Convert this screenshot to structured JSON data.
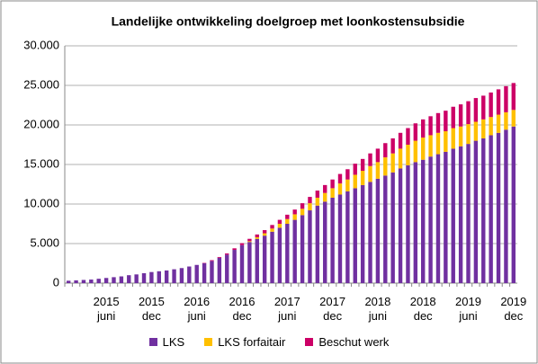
{
  "chart_data": {
    "type": "stacked_bar",
    "title": "Landelijke ontwikkeling doelgroep met loonkostensubsidie",
    "categories": [
      null,
      null,
      null,
      null,
      null,
      "2015 juni",
      null,
      null,
      null,
      null,
      null,
      "2015 dec",
      null,
      null,
      null,
      null,
      null,
      "2016 juni",
      null,
      null,
      null,
      null,
      null,
      "2016 dec",
      null,
      null,
      null,
      null,
      null,
      "2017 juni",
      null,
      null,
      null,
      null,
      null,
      "2017 dec",
      null,
      null,
      null,
      null,
      null,
      "2018 juni",
      null,
      null,
      null,
      null,
      null,
      "2018 dec",
      null,
      null,
      null,
      null,
      null,
      "2019 juni",
      null,
      null,
      null,
      null,
      null,
      "2019 dec"
    ],
    "series": [
      {
        "name": "LKS",
        "color": "#7030a0",
        "values": [
          300,
          350,
          400,
          450,
          550,
          650,
          750,
          850,
          1000,
          1100,
          1250,
          1400,
          1500,
          1600,
          1750,
          1900,
          2100,
          2300,
          2500,
          2800,
          3200,
          3600,
          4200,
          4800,
          5200,
          5600,
          6000,
          6500,
          7000,
          7500,
          8000,
          8600,
          9200,
          9800,
          10300,
          10800,
          11200,
          11600,
          12000,
          12400,
          12800,
          13200,
          13600,
          14000,
          14500,
          14900,
          15300,
          15600,
          16000,
          16300,
          16600,
          17000,
          17300,
          17600,
          18000,
          18300,
          18700,
          19000,
          19400,
          19800
        ]
      },
      {
        "name": "LKS forfaitair",
        "color": "#ffc000",
        "values": [
          0,
          0,
          0,
          0,
          0,
          0,
          0,
          0,
          0,
          0,
          0,
          0,
          0,
          0,
          0,
          0,
          0,
          0,
          0,
          0,
          0,
          0,
          0,
          0,
          100,
          200,
          300,
          400,
          500,
          600,
          700,
          800,
          900,
          1000,
          1100,
          1200,
          1400,
          1500,
          1700,
          1800,
          2000,
          2100,
          2300,
          2400,
          2500,
          2600,
          2700,
          2800,
          2700,
          2700,
          2600,
          2600,
          2500,
          2500,
          2400,
          2400,
          2300,
          2300,
          2200,
          2100
        ]
      },
      {
        "name": "Beschut werk",
        "color": "#cc0066",
        "values": [
          0,
          0,
          0,
          0,
          0,
          0,
          0,
          0,
          0,
          0,
          0,
          0,
          0,
          0,
          0,
          0,
          0,
          0,
          50,
          100,
          100,
          150,
          200,
          250,
          300,
          350,
          400,
          450,
          500,
          550,
          600,
          700,
          800,
          900,
          1000,
          1100,
          1200,
          1300,
          1400,
          1500,
          1600,
          1700,
          1800,
          1900,
          2000,
          2100,
          2200,
          2300,
          2400,
          2500,
          2600,
          2700,
          2800,
          2900,
          3000,
          3000,
          3100,
          3200,
          3300,
          3400
        ]
      }
    ],
    "ylim": [
      0,
      30000
    ],
    "yticks": [
      0,
      {
        "value": 5000,
        "label": "5.000"
      },
      {
        "value": 10000,
        "label": "10.000"
      },
      {
        "value": 15000,
        "label": "15.000"
      },
      {
        "value": 20000,
        "label": "20.000"
      },
      {
        "value": 25000,
        "label": "25.000"
      },
      {
        "value": 30000,
        "label": "30.000"
      }
    ],
    "grid": true,
    "legend": "bottom"
  }
}
